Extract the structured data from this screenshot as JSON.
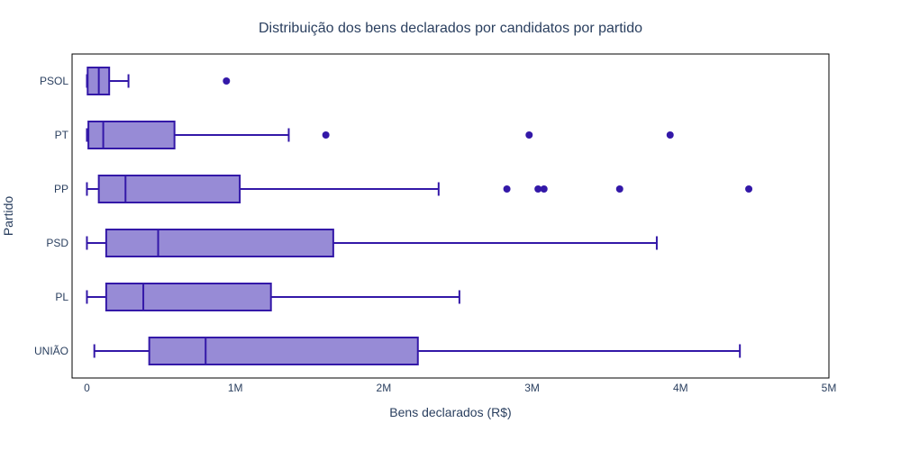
{
  "chart_data": {
    "type": "box",
    "orientation": "horizontal",
    "title": "Distribuição dos bens declarados por candidatos por partido",
    "xlabel": "Bens declarados (R$)",
    "ylabel": "Partido",
    "xlim": [
      -100000,
      5000000
    ],
    "xticks": [
      {
        "value": 0,
        "label": "0"
      },
      {
        "value": 1000000,
        "label": "1M"
      },
      {
        "value": 2000000,
        "label": "2M"
      },
      {
        "value": 3000000,
        "label": "3M"
      },
      {
        "value": 4000000,
        "label": "4M"
      },
      {
        "value": 5000000,
        "label": "5M"
      }
    ],
    "grid": false,
    "colors": {
      "box_fill": "#978bd6",
      "box_line": "#3318a8",
      "outlier": "#3318a8",
      "text": "#2a3f5f",
      "frame": "#000000"
    },
    "categories": [
      "PSOL",
      "PT",
      "PP",
      "PSD",
      "PL",
      "UNIÃO"
    ],
    "boxes": [
      {
        "category": "PSOL",
        "min": 0,
        "q1": 5000,
        "median": 80000,
        "q3": 150000,
        "max": 280000,
        "outliers": [
          940000
        ]
      },
      {
        "category": "PT",
        "min": 0,
        "q1": 10000,
        "median": 110000,
        "q3": 590000,
        "max": 1360000,
        "outliers": [
          1610000,
          2980000,
          3930000
        ]
      },
      {
        "category": "PP",
        "min": 0,
        "q1": 80000,
        "median": 260000,
        "q3": 1030000,
        "max": 2370000,
        "outliers": [
          2830000,
          3040000,
          3080000,
          3590000,
          4460000
        ]
      },
      {
        "category": "PSD",
        "min": 0,
        "q1": 130000,
        "median": 480000,
        "q3": 1660000,
        "max": 3840000,
        "outliers": []
      },
      {
        "category": "PL",
        "min": 0,
        "q1": 130000,
        "median": 380000,
        "q3": 1240000,
        "max": 2510000,
        "outliers": []
      },
      {
        "category": "UNIÃO",
        "min": 50000,
        "q1": 420000,
        "median": 800000,
        "q3": 2230000,
        "max": 4400000,
        "outliers": []
      }
    ]
  }
}
